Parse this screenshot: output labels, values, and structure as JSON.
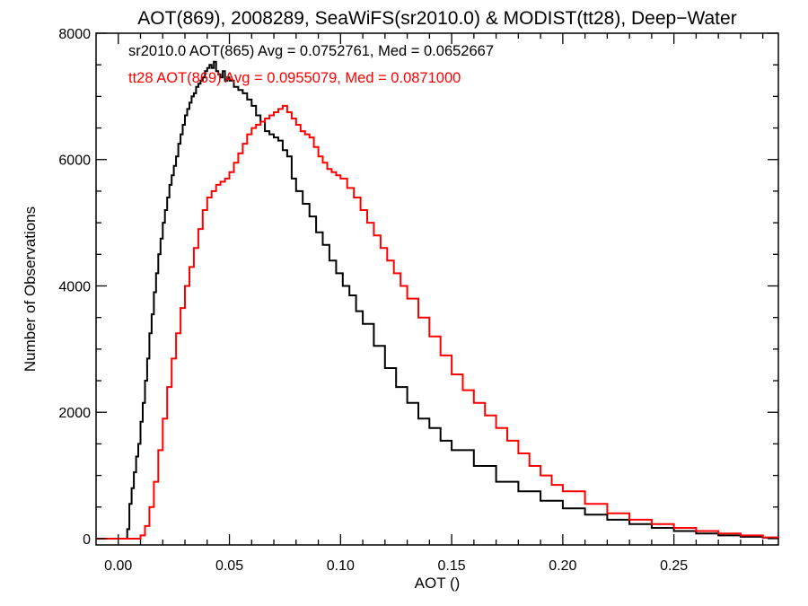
{
  "chart_data": {
    "type": "line",
    "title": "AOT(869), 2008289, SeaWiFS(sr2010.0) & MODIST(tt28), Deep−Water",
    "xlabel": "AOT ()",
    "ylabel": "Number of Observations",
    "xlim": [
      -0.01,
      0.297
    ],
    "ylim": [
      -100,
      8000
    ],
    "xticks": [
      0.0,
      0.05,
      0.1,
      0.15,
      0.2,
      0.25
    ],
    "xtick_labels": [
      "0.00",
      "0.05",
      "0.10",
      "0.15",
      "0.20",
      "0.25"
    ],
    "yticks": [
      0,
      2000,
      4000,
      6000,
      8000
    ],
    "ytick_labels": [
      "0",
      "2000",
      "4000",
      "6000",
      "8000"
    ],
    "grid": false,
    "legend": [
      "sr2010.0 AOT(865) Avg = 0.0752761, Med = 0.0652667",
      "tt28 AOT(869) Avg = 0.0955079, Med = 0.0871000"
    ],
    "series": [
      {
        "color": "#000000",
        "x": [
          -0.01,
          0.004,
          0.005,
          0.006,
          0.007,
          0.008,
          0.009,
          0.01,
          0.011,
          0.012,
          0.013,
          0.014,
          0.015,
          0.016,
          0.017,
          0.018,
          0.019,
          0.02,
          0.021,
          0.022,
          0.023,
          0.024,
          0.025,
          0.026,
          0.027,
          0.028,
          0.029,
          0.03,
          0.031,
          0.032,
          0.033,
          0.034,
          0.035,
          0.036,
          0.037,
          0.038,
          0.039,
          0.04,
          0.041,
          0.042,
          0.043,
          0.044,
          0.045,
          0.046,
          0.047,
          0.048,
          0.049,
          0.05,
          0.052,
          0.054,
          0.056,
          0.058,
          0.06,
          0.062,
          0.064,
          0.066,
          0.068,
          0.07,
          0.072,
          0.074,
          0.076,
          0.078,
          0.08,
          0.083,
          0.086,
          0.089,
          0.092,
          0.095,
          0.098,
          0.101,
          0.104,
          0.107,
          0.11,
          0.115,
          0.12,
          0.125,
          0.13,
          0.135,
          0.14,
          0.145,
          0.15,
          0.16,
          0.17,
          0.18,
          0.19,
          0.2,
          0.21,
          0.22,
          0.23,
          0.24,
          0.25,
          0.26,
          0.27,
          0.28,
          0.29,
          0.297
        ],
        "y": [
          0,
          150,
          550,
          800,
          1050,
          1300,
          1500,
          1850,
          2150,
          2500,
          2850,
          3250,
          3550,
          3900,
          4200,
          4500,
          4750,
          5000,
          5200,
          5400,
          5600,
          5750,
          5900,
          6050,
          6250,
          6400,
          6550,
          6700,
          6800,
          6900,
          7000,
          7050,
          7150,
          7200,
          7250,
          7300,
          7400,
          7450,
          7500,
          7450,
          7550,
          7400,
          7350,
          7300,
          7400,
          7250,
          7300,
          7250,
          7150,
          7100,
          7050,
          6950,
          6850,
          6700,
          6600,
          6450,
          6400,
          6350,
          6300,
          6150,
          6050,
          5700,
          5500,
          5300,
          5100,
          4850,
          4650,
          4400,
          4200,
          4000,
          3850,
          3600,
          3400,
          3050,
          2700,
          2400,
          2150,
          1900,
          1750,
          1550,
          1400,
          1150,
          900,
          750,
          600,
          480,
          380,
          300,
          230,
          170,
          120,
          80,
          50,
          30,
          15,
          5
        ]
      },
      {
        "color": "#ff0000",
        "x": [
          -0.01,
          0.01,
          0.012,
          0.014,
          0.016,
          0.018,
          0.02,
          0.022,
          0.024,
          0.026,
          0.028,
          0.03,
          0.032,
          0.034,
          0.036,
          0.038,
          0.04,
          0.042,
          0.044,
          0.046,
          0.048,
          0.05,
          0.052,
          0.054,
          0.056,
          0.058,
          0.06,
          0.062,
          0.064,
          0.066,
          0.068,
          0.07,
          0.072,
          0.074,
          0.076,
          0.078,
          0.08,
          0.082,
          0.084,
          0.086,
          0.088,
          0.09,
          0.092,
          0.094,
          0.096,
          0.098,
          0.1,
          0.103,
          0.106,
          0.109,
          0.112,
          0.115,
          0.118,
          0.121,
          0.124,
          0.127,
          0.13,
          0.135,
          0.14,
          0.145,
          0.15,
          0.155,
          0.16,
          0.165,
          0.17,
          0.175,
          0.18,
          0.185,
          0.19,
          0.195,
          0.2,
          0.21,
          0.22,
          0.23,
          0.24,
          0.25,
          0.26,
          0.27,
          0.28,
          0.29,
          0.297
        ],
        "y": [
          0,
          50,
          200,
          500,
          900,
          1400,
          1900,
          2400,
          2850,
          3250,
          3650,
          4000,
          4300,
          4600,
          4900,
          5200,
          5400,
          5500,
          5600,
          5650,
          5700,
          5800,
          5950,
          6100,
          6250,
          6400,
          6500,
          6550,
          6600,
          6650,
          6700,
          6750,
          6800,
          6850,
          6750,
          6650,
          6550,
          6450,
          6400,
          6350,
          6200,
          6050,
          5950,
          5850,
          5800,
          5750,
          5700,
          5550,
          5400,
          5200,
          5000,
          4800,
          4600,
          4400,
          4200,
          4000,
          3800,
          3500,
          3200,
          2900,
          2600,
          2350,
          2150,
          1950,
          1750,
          1550,
          1350,
          1150,
          1000,
          850,
          750,
          550,
          400,
          300,
          230,
          170,
          120,
          80,
          50,
          20,
          5
        ]
      }
    ]
  }
}
